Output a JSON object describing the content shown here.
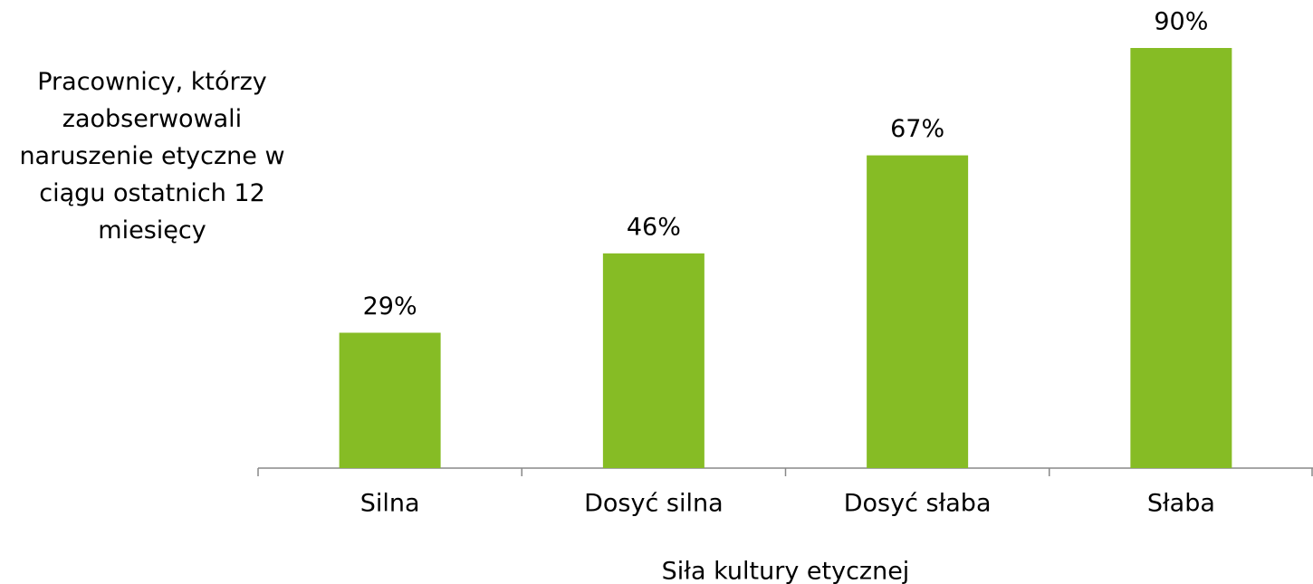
{
  "chart_data": {
    "type": "bar",
    "ylabel": "Pracownicy, którzy zaobserwowali naruszenie etyczne w ciągu ostatnich 12  miesięcy",
    "xlabel": "Siła kultury etycznej",
    "categories": [
      "Silna",
      "Dosyć silna",
      "Dosyć słaba",
      "Słaba"
    ],
    "values": [
      29,
      46,
      67,
      90
    ],
    "value_labels": [
      "29%",
      "46%",
      "67%",
      "90%"
    ],
    "color": "#86bc25",
    "ylim": [
      0,
      90
    ]
  }
}
